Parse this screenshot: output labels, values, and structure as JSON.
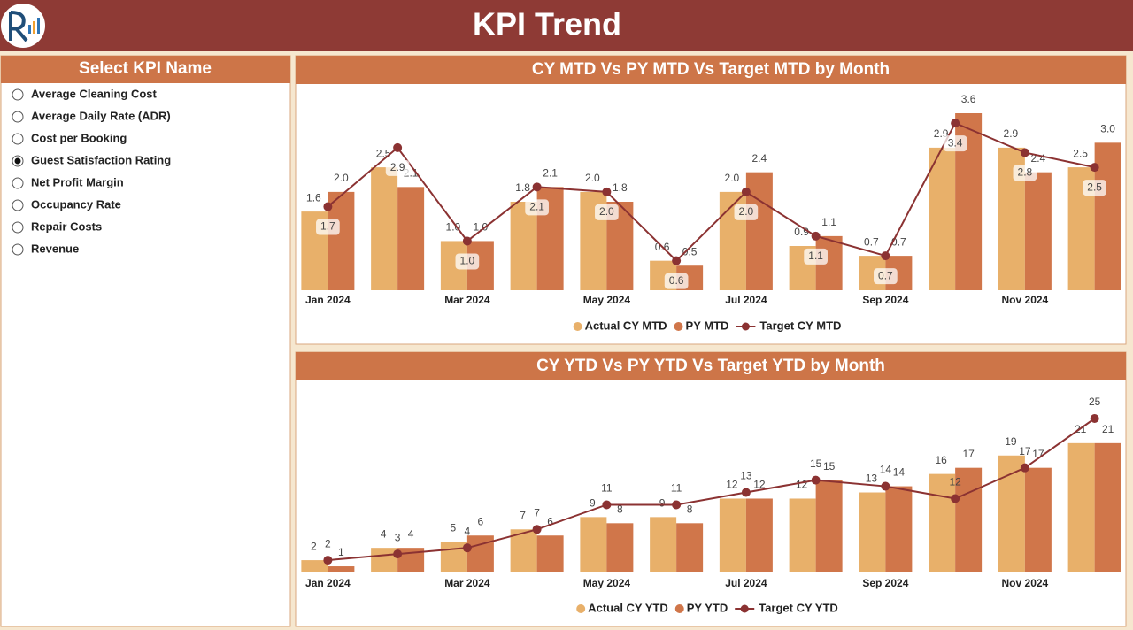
{
  "header": {
    "title": "KPI Trend"
  },
  "slicer": {
    "title": "Select KPI Name",
    "options": [
      "Average Cleaning Cost",
      "Average Daily Rate (ADR)",
      "Cost per Booking",
      "Guest Satisfaction Rating",
      "Net Profit Margin",
      "Occupancy Rate",
      "Repair Costs",
      "Revenue"
    ],
    "selected": 3
  },
  "chart_data": [
    {
      "type": "combo",
      "title": "CY MTD Vs PY MTD Vs Target MTD by Month",
      "legend": "bottom",
      "categories": [
        "Jan 2024",
        null,
        "Mar 2024",
        null,
        "May 2024",
        null,
        "Jul 2024",
        null,
        "Sep 2024",
        null,
        "Nov 2024",
        null
      ],
      "series": [
        {
          "name": "Actual CY MTD",
          "type": "bar",
          "color": "#e8b06a",
          "values": [
            1.6,
            2.5,
            1,
            1.8,
            2,
            0.6,
            2,
            0.9,
            0.7,
            2.9,
            2.9,
            2.5
          ],
          "value_labels": [
            "1.6",
            "2.5",
            "1.0",
            "1.8",
            "2.0",
            "0.6",
            "2.0",
            "0.9",
            "0.7",
            "2.9",
            "2.9",
            "2.5"
          ]
        },
        {
          "name": "PY MTD",
          "type": "bar",
          "color": "#d0764a",
          "values": [
            2,
            2.1,
            1,
            2.1,
            1.8,
            0.5,
            2.4,
            1.1,
            0.7,
            3.6,
            2.4,
            3
          ],
          "value_labels": [
            "2.0",
            "2.1",
            "1.0",
            "2.1",
            "1.8",
            "0.5",
            "2.4",
            "1.1",
            "0.7",
            "3.6",
            "2.4",
            "3.0"
          ]
        },
        {
          "name": "Target CY MTD",
          "type": "line",
          "color": "#8b3232",
          "values": [
            1.7,
            2.9,
            1,
            2.1,
            2,
            0.6,
            2,
            1.1,
            0.7,
            3.4,
            2.8,
            2.5
          ],
          "value_labels": [
            "1.7",
            "2.9",
            "1.0",
            "2.1",
            "2.0",
            "0.6",
            "2.0",
            "1.1",
            "0.7",
            "3.4",
            "2.8",
            "2.5"
          ]
        }
      ]
    },
    {
      "type": "combo",
      "title": "CY YTD Vs PY YTD Vs Target YTD by Month",
      "legend": "bottom",
      "categories": [
        "Jan 2024",
        null,
        "Mar 2024",
        null,
        "May 2024",
        null,
        "Jul 2024",
        null,
        "Sep 2024",
        null,
        "Nov 2024",
        null
      ],
      "series": [
        {
          "name": "Actual CY YTD",
          "type": "bar",
          "color": "#e8b06a",
          "values": [
            2,
            4,
            5,
            7,
            9,
            9,
            12,
            12,
            13,
            16,
            19,
            21
          ]
        },
        {
          "name": "PY YTD",
          "type": "bar",
          "color": "#d0764a",
          "values": [
            1,
            4,
            6,
            6,
            8,
            8,
            12,
            15,
            14,
            17,
            17,
            21
          ]
        },
        {
          "name": "Target CY YTD",
          "type": "line",
          "color": "#8b3232",
          "values": [
            2,
            3,
            4,
            7,
            11,
            11,
            13,
            15,
            14,
            12,
            17,
            25
          ]
        }
      ]
    }
  ]
}
